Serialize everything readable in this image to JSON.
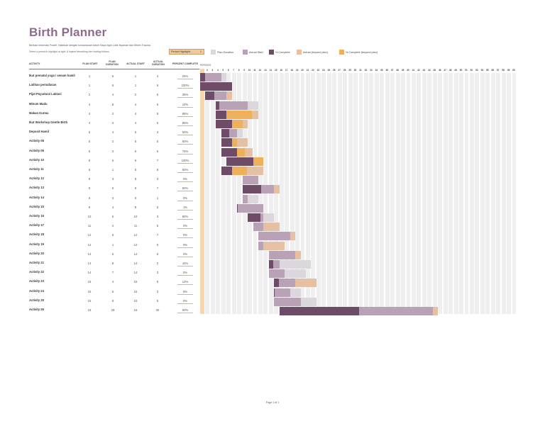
{
  "title": "Birth Planner",
  "subtitle": "Berikan Informasi Positif, Yakinkan dengan kemampuan tubuh Saya ingin Lahir Nyaman dan Minim Trauma",
  "hint": "Select a period to highlight at right.  A legend describing the charting follows.",
  "period_highlight": {
    "label": "Period Highlight:",
    "value": "1"
  },
  "legend": [
    {
      "label": "Plan Duration",
      "color": "#dcd7dc"
    },
    {
      "label": "Actual Start",
      "color": "#b9a2b6"
    },
    {
      "label": "% Complete",
      "color": "#6e4c68"
    },
    {
      "label": "Actual (beyond plan)",
      "color": "#e5c0a3"
    },
    {
      "label": "% Complete (beyond plan)",
      "color": "#eeb05a"
    }
  ],
  "headers": {
    "activity": "ACTIVITY",
    "plan_start": "PLAN START",
    "plan_duration": "PLAN DURATION",
    "actual_start": "ACTUAL START",
    "actual_duration": "ACTUAL DURATION",
    "percent_complete": "PERCENT COMPLETE",
    "periods": "PERIODS"
  },
  "periods_count": 60,
  "highlight_period": 1,
  "activities": [
    {
      "name": "Ikut prenatal yoga / senam hamil",
      "ps": 1,
      "pd": 5,
      "as": 1,
      "ad": 4,
      "pct": "25%",
      "p": 25
    },
    {
      "name": "Latihan pernafasan",
      "ps": 1,
      "pd": 6,
      "as": 1,
      "ad": 6,
      "pct": "100%",
      "p": 100
    },
    {
      "name": "Pijat Payudara/ Laktasi",
      "ps": 2,
      "pd": 4,
      "as": 2,
      "ad": 5,
      "pct": "35%",
      "p": 35
    },
    {
      "name": "Minum Madu",
      "ps": 4,
      "pd": 8,
      "as": 4,
      "ad": 6,
      "pct": "10%",
      "p": 10
    },
    {
      "name": "Makan Kurma",
      "ps": 4,
      "pd": 2,
      "as": 4,
      "ad": 8,
      "pct": "85%",
      "p": 85
    },
    {
      "name": "Ikut Workshop Gentle Birth",
      "ps": 4,
      "pd": 3,
      "as": 4,
      "ad": 6,
      "pct": "85%",
      "p": 85
    },
    {
      "name": "Deposit Hamil",
      "ps": 5,
      "pd": 4,
      "as": 5,
      "ad": 3,
      "pct": "50%",
      "p": 50
    },
    {
      "name": "Activity 08",
      "ps": 5,
      "pd": 2,
      "as": 5,
      "ad": 5,
      "pct": "60%",
      "p": 60
    },
    {
      "name": "Activity 09",
      "ps": 5,
      "pd": 3,
      "as": 5,
      "ad": 6,
      "pct": "75%",
      "p": 75
    },
    {
      "name": "Activity 10",
      "ps": 6,
      "pd": 5,
      "as": 6,
      "ad": 7,
      "pct": "100%",
      "p": 100
    },
    {
      "name": "Activity 11",
      "ps": 6,
      "pd": 1,
      "as": 5,
      "ad": 8,
      "pct": "60%",
      "p": 60
    },
    {
      "name": "Activity 12",
      "ps": 9,
      "pd": 3,
      "as": 9,
      "ad": 3,
      "pct": "0%",
      "p": 0
    },
    {
      "name": "Activity 13",
      "ps": 9,
      "pd": 6,
      "as": 9,
      "ad": 7,
      "pct": "50%",
      "p": 50
    },
    {
      "name": "Activity 14",
      "ps": 9,
      "pd": 3,
      "as": 9,
      "ad": 1,
      "pct": "0%",
      "p": 0
    },
    {
      "name": "Activity 15",
      "ps": 9,
      "pd": 4,
      "as": 8,
      "ad": 5,
      "pct": "1%",
      "p": 1
    },
    {
      "name": "Activity 16",
      "ps": 10,
      "pd": 5,
      "as": 10,
      "ad": 3,
      "pct": "80%",
      "p": 80
    },
    {
      "name": "Activity 17",
      "ps": 11,
      "pd": 2,
      "as": 11,
      "ad": 5,
      "pct": "0%",
      "p": 0
    },
    {
      "name": "Activity 18",
      "ps": 12,
      "pd": 6,
      "as": 12,
      "ad": 7,
      "pct": "0%",
      "p": 0
    },
    {
      "name": "Activity 19",
      "ps": 12,
      "pd": 1,
      "as": 12,
      "ad": 5,
      "pct": "0%",
      "p": 0
    },
    {
      "name": "Activity 20",
      "ps": 14,
      "pd": 5,
      "as": 14,
      "ad": 6,
      "pct": "0%",
      "p": 0
    },
    {
      "name": "Activity 21",
      "ps": 14,
      "pd": 8,
      "as": 14,
      "ad": 2,
      "pct": "44%",
      "p": 44
    },
    {
      "name": "Activity 22",
      "ps": 14,
      "pd": 7,
      "as": 14,
      "ad": 3,
      "pct": "0%",
      "p": 0
    },
    {
      "name": "Activity 23",
      "ps": 15,
      "pd": 4,
      "as": 15,
      "ad": 8,
      "pct": "12%",
      "p": 12
    },
    {
      "name": "Activity 24",
      "ps": 15,
      "pd": 5,
      "as": 15,
      "ad": 3,
      "pct": "5%",
      "p": 5
    },
    {
      "name": "Activity 25",
      "ps": 15,
      "pd": 8,
      "as": 15,
      "ad": 5,
      "pct": "0%",
      "p": 0
    },
    {
      "name": "Activity 26",
      "ps": 16,
      "pd": 29,
      "as": 16,
      "ad": 30,
      "pct": "50%",
      "p": 50
    }
  ],
  "footer": "Page 1 of 1"
}
